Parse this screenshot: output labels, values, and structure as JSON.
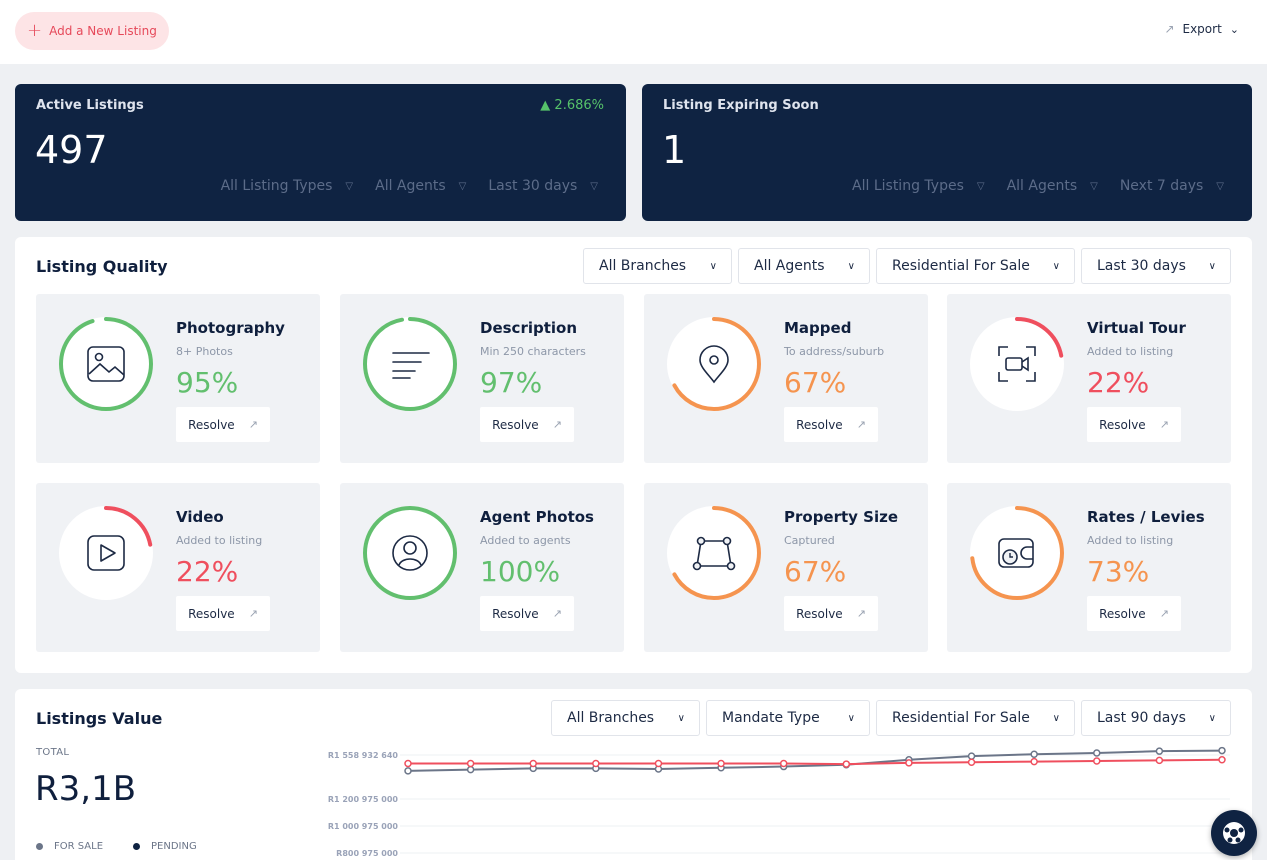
{
  "topbar": {
    "add_listing": "Add a New Listing",
    "export": "Export"
  },
  "active_listings": {
    "title": "Active Listings",
    "value": "497",
    "change": "2.686%",
    "filters": [
      "All Listing Types",
      "All Agents",
      "Last 30 days"
    ]
  },
  "expiring": {
    "title": "Listing Expiring Soon",
    "value": "1",
    "filters": [
      "All Listing Types",
      "All Agents",
      "Next 7 days"
    ]
  },
  "quality": {
    "title": "Listing Quality",
    "filters": [
      "All Branches",
      "All Agents",
      "Residential For Sale",
      "Last 30 days"
    ],
    "resolve_label": "Resolve",
    "cards": [
      {
        "title": "Photography",
        "subtitle": "8+ Photos",
        "percent": "95%",
        "value": 95,
        "color": "#62bf6e",
        "icon": "image-icon"
      },
      {
        "title": "Description",
        "subtitle": "Min 250 characters",
        "percent": "97%",
        "value": 97,
        "color": "#62bf6e",
        "icon": "text-lines-icon"
      },
      {
        "title": "Mapped",
        "subtitle": "To address/suburb",
        "percent": "67%",
        "value": 67,
        "color": "#f5944f",
        "icon": "map-pin-icon"
      },
      {
        "title": "Virtual Tour",
        "subtitle": "Added to listing",
        "percent": "22%",
        "value": 22,
        "color": "#ef4f5e",
        "icon": "video-camera-icon"
      },
      {
        "title": "Video",
        "subtitle": "Added to listing",
        "percent": "22%",
        "value": 22,
        "color": "#ef4f5e",
        "icon": "play-icon"
      },
      {
        "title": "Agent Photos",
        "subtitle": "Added to agents",
        "percent": "100%",
        "value": 100,
        "color": "#62bf6e",
        "icon": "user-icon"
      },
      {
        "title": "Property Size",
        "subtitle": "Captured",
        "percent": "67%",
        "value": 67,
        "color": "#f5944f",
        "icon": "area-shape-icon"
      },
      {
        "title": "Rates / Levies",
        "subtitle": "Added to listing",
        "percent": "73%",
        "value": 73,
        "color": "#f5944f",
        "icon": "wallet-clock-icon"
      }
    ]
  },
  "listings_value": {
    "title": "Listings Value",
    "filters": [
      "All Branches",
      "Mandate Type",
      "Residential For Sale",
      "Last 90 days"
    ],
    "total_label": "TOTAL",
    "total_value": "R3,1B",
    "legend": [
      {
        "label": "FOR SALE",
        "color": "#6b7588"
      },
      {
        "label": "PENDING",
        "color": "#0f2342"
      }
    ]
  },
  "chart_data": {
    "type": "line",
    "y_tick_labels": [
      "R1 558 932 640",
      "R1 200 975 000",
      "R1 000 975 000",
      "R800 975 000"
    ],
    "y_ticks": [
      1558932640,
      1200975000,
      1000975000,
      800975000
    ],
    "series": [
      {
        "color": "#6b7588",
        "values": [
          1430000000,
          1440000000,
          1450000000,
          1450000000,
          1445000000,
          1455000000,
          1465000000,
          1480000000,
          1520000000,
          1550000000,
          1565000000,
          1575000000,
          1590000000,
          1595000000
        ]
      },
      {
        "color": "#ef4f5e",
        "values": [
          1490000000,
          1490000000,
          1490000000,
          1490000000,
          1490000000,
          1490000000,
          1490000000,
          1485000000,
          1495000000,
          1500000000,
          1505000000,
          1510000000,
          1515000000,
          1520000000
        ]
      }
    ]
  }
}
